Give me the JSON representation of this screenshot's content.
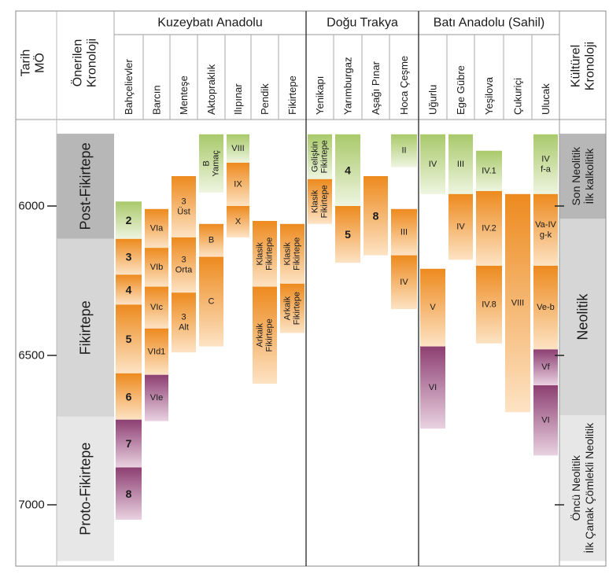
{
  "headers": {
    "date_axis": "Tarih MÖ",
    "proposed_chronology": "Önerilen Kronoloji",
    "cultural_chronology": "Kültürel Kronoloji"
  },
  "regions": [
    {
      "id": "kuzeybati",
      "label": "Kuzeybatı Anadolu"
    },
    {
      "id": "dogu",
      "label": "Doğu Trakya"
    },
    {
      "id": "bati",
      "label": "Batı Anadolu (Sahil)"
    }
  ],
  "sites": [
    {
      "id": "bahcelievler",
      "name": "Bahçelievler",
      "region": "kuzeybati"
    },
    {
      "id": "barcin",
      "name": "Barcın",
      "region": "kuzeybati"
    },
    {
      "id": "mentese",
      "name": "Menteşe",
      "region": "kuzeybati"
    },
    {
      "id": "aktopraklik",
      "name": "Aktopraklık",
      "region": "kuzeybati"
    },
    {
      "id": "ilipinar",
      "name": "Ilıpınar",
      "region": "kuzeybati"
    },
    {
      "id": "pendik",
      "name": "Pendik",
      "region": "kuzeybati"
    },
    {
      "id": "fikirtepe",
      "name": "Fikirtepe",
      "region": "kuzeybati"
    },
    {
      "id": "yenikapi",
      "name": "Yenikapı",
      "region": "dogu"
    },
    {
      "id": "yarimburgaz",
      "name": "Yarımburgaz",
      "region": "dogu"
    },
    {
      "id": "asagipinar",
      "name": "Aşağı Pınar",
      "region": "dogu"
    },
    {
      "id": "hocacesme",
      "name": "Hoca Çeşme",
      "region": "dogu"
    },
    {
      "id": "ugurlu",
      "name": "Uğurlu",
      "region": "bati"
    },
    {
      "id": "egegubre",
      "name": "Ege Gübre",
      "region": "bati"
    },
    {
      "id": "yesilova",
      "name": "Yeşilova",
      "region": "bati"
    },
    {
      "id": "cukurici",
      "name": "Çukuriçi",
      "region": "bati"
    },
    {
      "id": "ulucak",
      "name": "Ulucak",
      "region": "bati"
    }
  ],
  "y_axis": {
    "ticks": [
      {
        "value": 6000,
        "label": "6000"
      },
      {
        "value": 6500,
        "label": "6500"
      },
      {
        "value": 7000,
        "label": "7000"
      }
    ]
  },
  "proposed_periods": [
    {
      "label": "Post-Fikirtepe",
      "start": 5758,
      "end": 6110,
      "color": "#b7b7b7"
    },
    {
      "label": "Fikirtepe",
      "start": 6110,
      "end": 6705,
      "color": "#d6d6d6"
    },
    {
      "label": "Proto-Fikirtepe",
      "start": 6705,
      "end": 7188,
      "color": "#e7e7e7"
    }
  ],
  "cultural_periods": [
    {
      "lines": [
        "Son Neolitik",
        "İlk kalkolitik"
      ],
      "start": 5758,
      "end": 6043,
      "color": "#b7b7b7"
    },
    {
      "lines": [
        "Neolitik"
      ],
      "start": 6043,
      "end": 6700,
      "color": "#d6d6d6"
    },
    {
      "lines": [
        "Öncü Neolitik",
        "İlk Çanak Çömlekli Neolitik"
      ],
      "start": 6700,
      "end": 7188,
      "color": "#e7e7e7"
    }
  ],
  "phases": [
    {
      "site": "bahcelievler",
      "label": "2",
      "start": 5985,
      "end": 6110,
      "color": "green"
    },
    {
      "site": "bahcelievler",
      "label": "3",
      "start": 6110,
      "end": 6230,
      "color": "orange"
    },
    {
      "site": "bahcelievler",
      "label": "4",
      "start": 6230,
      "end": 6330,
      "color": "orange"
    },
    {
      "site": "bahcelievler",
      "label": "5",
      "start": 6330,
      "end": 6560,
      "color": "orange"
    },
    {
      "site": "bahcelievler",
      "label": "6",
      "start": 6560,
      "end": 6715,
      "color": "orange"
    },
    {
      "site": "bahcelievler",
      "label": "7",
      "start": 6715,
      "end": 6875,
      "color": "purple"
    },
    {
      "site": "bahcelievler",
      "label": "8",
      "start": 6875,
      "end": 7050,
      "color": "purple"
    },
    {
      "site": "barcin",
      "label": "VIa",
      "start": 6010,
      "end": 6140,
      "color": "orange"
    },
    {
      "site": "barcin",
      "label": "VIb",
      "start": 6140,
      "end": 6270,
      "color": "orange"
    },
    {
      "site": "barcin",
      "label": "VIc",
      "start": 6270,
      "end": 6410,
      "color": "orange"
    },
    {
      "site": "barcin",
      "label": "VId1",
      "start": 6410,
      "end": 6565,
      "color": "orange"
    },
    {
      "site": "barcin",
      "label": "VIe",
      "start": 6565,
      "end": 6720,
      "color": "purple"
    },
    {
      "site": "mentese",
      "lines": [
        "3",
        "Üst"
      ],
      "start": 5900,
      "end": 6105,
      "color": "orange"
    },
    {
      "site": "mentese",
      "lines": [
        "3",
        "Orta"
      ],
      "start": 6105,
      "end": 6290,
      "color": "orange"
    },
    {
      "site": "mentese",
      "lines": [
        "3",
        "Alt"
      ],
      "start": 6290,
      "end": 6490,
      "color": "orange"
    },
    {
      "site": "aktopraklik",
      "label": "B Yamaç",
      "start": 5760,
      "end": 5955,
      "color": "green",
      "vertical": true
    },
    {
      "site": "aktopraklik",
      "label": "B",
      "start": 6060,
      "end": 6170,
      "color": "orange"
    },
    {
      "site": "aktopraklik",
      "label": "C",
      "start": 6170,
      "end": 6470,
      "color": "orange"
    },
    {
      "site": "ilipinar",
      "label": "VIII",
      "start": 5760,
      "end": 5855,
      "color": "green"
    },
    {
      "site": "ilipinar",
      "label": "IX",
      "start": 5855,
      "end": 6000,
      "color": "orange"
    },
    {
      "site": "ilipinar",
      "label": "X",
      "start": 6000,
      "end": 6105,
      "color": "orange"
    },
    {
      "site": "pendik",
      "label": "Klasik Fikirtepe",
      "start": 6050,
      "end": 6270,
      "color": "orange",
      "vertical": true
    },
    {
      "site": "pendik",
      "label": "Arkaik Fikirtepe",
      "start": 6270,
      "end": 6595,
      "color": "orange",
      "vertical": true
    },
    {
      "site": "fikirtepe",
      "label": "Klasik Fikirtepe",
      "start": 6060,
      "end": 6260,
      "color": "orange",
      "vertical": true
    },
    {
      "site": "fikirtepe",
      "label": "Arkaik Fikirtepe",
      "start": 6260,
      "end": 6425,
      "color": "orange",
      "vertical": true
    },
    {
      "site": "yenikapi",
      "label": "Gelişkin Fikirtepe",
      "start": 5760,
      "end": 5910,
      "color": "green",
      "vertical": true
    },
    {
      "site": "yenikapi",
      "label": "Klasik Fikirtepe",
      "start": 5910,
      "end": 6060,
      "color": "orange",
      "vertical": true
    },
    {
      "site": "yarimburgaz",
      "label": "4",
      "start": 5760,
      "end": 6000,
      "color": "green"
    },
    {
      "site": "yarimburgaz",
      "label": "5",
      "start": 6000,
      "end": 6190,
      "color": "orange"
    },
    {
      "site": "asagipinar",
      "label": "8",
      "start": 5900,
      "end": 6165,
      "color": "orange"
    },
    {
      "site": "hocacesme",
      "label": "II",
      "start": 5760,
      "end": 5870,
      "color": "green"
    },
    {
      "site": "hocacesme",
      "label": "III",
      "start": 6010,
      "end": 6165,
      "color": "orange"
    },
    {
      "site": "hocacesme",
      "label": "IV",
      "start": 6165,
      "end": 6345,
      "color": "orange"
    },
    {
      "site": "ugurlu",
      "label": "IV",
      "start": 5760,
      "end": 5960,
      "color": "green"
    },
    {
      "site": "ugurlu",
      "label": "V",
      "start": 6210,
      "end": 6470,
      "color": "orange"
    },
    {
      "site": "ugurlu",
      "label": "VI",
      "start": 6470,
      "end": 6745,
      "color": "purple"
    },
    {
      "site": "egegubre",
      "label": "III",
      "start": 5760,
      "end": 5960,
      "color": "green"
    },
    {
      "site": "egegubre",
      "label": "IV",
      "start": 5960,
      "end": 6180,
      "color": "orange"
    },
    {
      "site": "yesilova",
      "label": "IV.1",
      "start": 5815,
      "end": 5950,
      "color": "green"
    },
    {
      "site": "yesilova",
      "label": "IV.2",
      "start": 5950,
      "end": 6200,
      "color": "orange"
    },
    {
      "site": "yesilova",
      "label": "IV.8",
      "start": 6200,
      "end": 6460,
      "color": "orange"
    },
    {
      "site": "cukurici",
      "label": "VIII",
      "start": 5960,
      "end": 6690,
      "color": "orange"
    },
    {
      "site": "ulucak",
      "lines": [
        "IV",
        "f-a"
      ],
      "start": 5760,
      "end": 5960,
      "color": "green"
    },
    {
      "site": "ulucak",
      "lines": [
        "Va-IV",
        "g-k"
      ],
      "start": 5960,
      "end": 6200,
      "color": "orange"
    },
    {
      "site": "ulucak",
      "label": "Ve-b",
      "start": 6200,
      "end": 6480,
      "color": "orange"
    },
    {
      "site": "ulucak",
      "label": "Vf",
      "start": 6480,
      "end": 6600,
      "color": "purple"
    },
    {
      "site": "ulucak",
      "label": "VI",
      "start": 6600,
      "end": 6835,
      "color": "purple"
    }
  ],
  "colors": {
    "green": [
      "#a9c96a",
      "#eef5e0"
    ],
    "orange": [
      "#ed8a1e",
      "#fde3c4"
    ],
    "purple": [
      "#8d3f72",
      "#e9d2e1"
    ],
    "grid": "#333333"
  }
}
